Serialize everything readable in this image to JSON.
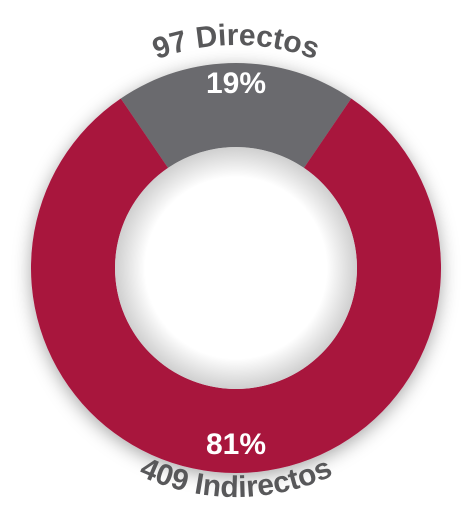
{
  "chart_data": {
    "type": "donut",
    "categories": [
      "97 Directos",
      "409 Indirectos"
    ],
    "values": [
      19,
      81
    ],
    "value_labels": [
      "19%",
      "81%"
    ],
    "colors": [
      "#6b6b6e",
      "#a8123e"
    ]
  }
}
